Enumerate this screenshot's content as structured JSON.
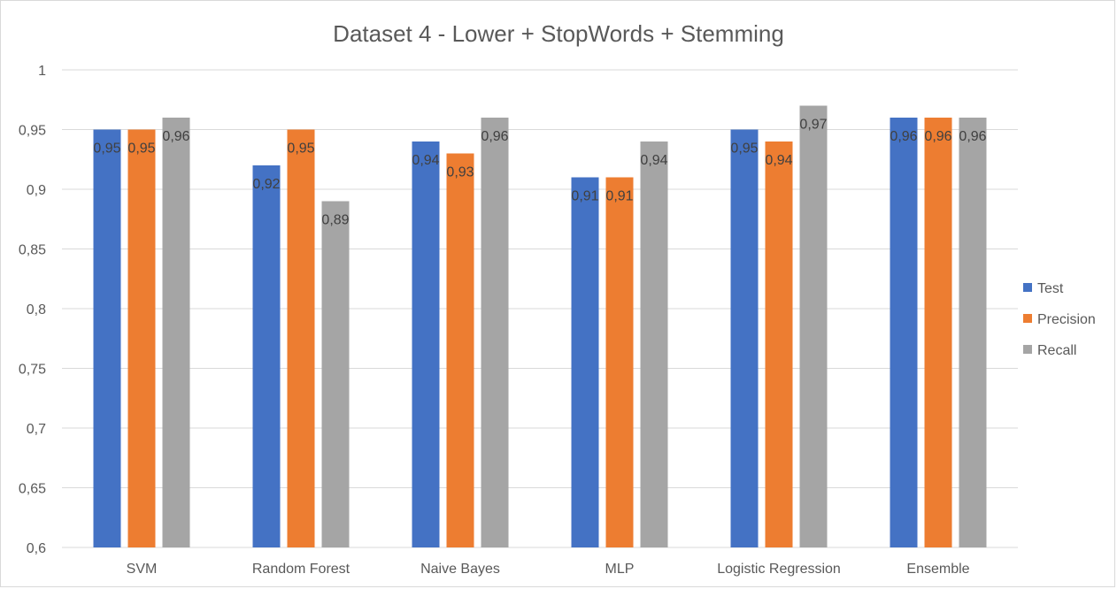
{
  "chart_data": {
    "type": "bar",
    "title": "Dataset 4 - Lower + StopWords + Stemming",
    "categories": [
      "SVM",
      "Random Forest",
      "Naive Bayes",
      "MLP",
      "Logistic Regression",
      "Ensemble"
    ],
    "series": [
      {
        "name": "Test",
        "color": "#4472C4",
        "values": [
          0.95,
          0.92,
          0.94,
          0.91,
          0.95,
          0.96
        ],
        "labels": [
          "0,95",
          "0,92",
          "0,94",
          "0,91",
          "0,95",
          "0,96"
        ]
      },
      {
        "name": "Precision",
        "color": "#ED7D31",
        "values": [
          0.95,
          0.95,
          0.93,
          0.91,
          0.94,
          0.96
        ],
        "labels": [
          "0,95",
          "0,95",
          "0,93",
          "0,91",
          "0,94",
          "0,96"
        ]
      },
      {
        "name": "Recall",
        "color": "#A5A5A5",
        "values": [
          0.96,
          0.89,
          0.96,
          0.94,
          0.97,
          0.96
        ],
        "labels": [
          "0,96",
          "0,89",
          "0,96",
          "0,94",
          "0,97",
          "0,96"
        ]
      }
    ],
    "ylim": [
      0.6,
      1
    ],
    "yticks": [
      0.6,
      0.65,
      0.7,
      0.75,
      0.8,
      0.85,
      0.9,
      0.95,
      1
    ],
    "ytick_labels": [
      "0,6",
      "0,65",
      "0,7",
      "0,75",
      "0,8",
      "0,85",
      "0,9",
      "0,95",
      "1"
    ],
    "xlabel": "",
    "ylabel": "",
    "grid": true,
    "legend_position": "right"
  }
}
